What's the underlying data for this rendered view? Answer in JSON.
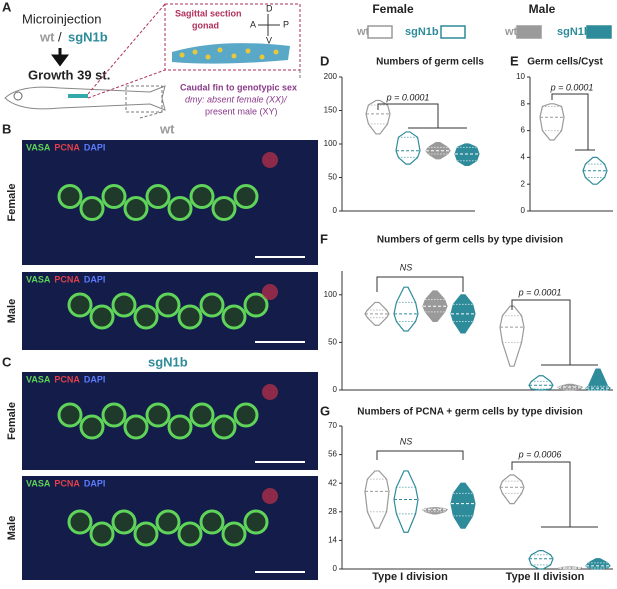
{
  "panel_a": {
    "label": "A",
    "microinjection": "Microinjection",
    "wt": "wt",
    "slash": "/",
    "sgN1b": "sgN1b",
    "growth": "Growth 39 st.",
    "section_title": "Sagittal section",
    "section_sub": "gonad",
    "axes": [
      "A",
      "D",
      "P",
      "V"
    ],
    "caudal": "Caudal fin to genotypic sex",
    "dmy_line1": "dmy: absent female (XX)/",
    "dmy_line2": "present male (XY)"
  },
  "panel_b": {
    "label": "B",
    "genotype": "wt",
    "stains": [
      "VASA",
      "PCNA",
      "DAPI"
    ],
    "rows": [
      "Female",
      "Male"
    ]
  },
  "panel_c": {
    "label": "C",
    "genotype": "sgN1b",
    "stains": [
      "VASA",
      "PCNA",
      "DAPI"
    ],
    "rows": [
      "Female",
      "Male"
    ]
  },
  "legend": [
    {
      "title": "Female",
      "entries": [
        {
          "label": "wt",
          "fill": "#ffffff",
          "stroke": "#9a9a9a"
        },
        {
          "label": "sgN1b",
          "fill": "#ffffff",
          "stroke": "#2e8b9a"
        }
      ]
    },
    {
      "title": "Male",
      "entries": [
        {
          "label": "wt",
          "fill": "#9a9a9a",
          "stroke": "#9a9a9a"
        },
        {
          "label": "sgN1b",
          "fill": "#2e8b9a",
          "stroke": "#2e8b9a"
        }
      ]
    }
  ],
  "chart_data": [
    {
      "type": "violin",
      "label": "D",
      "title": "Numbers of germ cells",
      "ylim": [
        0,
        200
      ],
      "yticks": [
        0,
        50,
        100,
        150,
        200
      ],
      "annotations": [
        "p = 0.0001"
      ],
      "series": [
        {
          "fill": "#ffffff",
          "color": "#9a9a9a",
          "values": [
            115,
            130,
            145,
            158,
            165
          ]
        },
        {
          "fill": "#ffffff",
          "color": "#2e8b9a",
          "values": [
            70,
            80,
            90,
            110,
            118
          ]
        },
        {
          "fill": "#9a9a9a",
          "color": "#9a9a9a",
          "values": [
            78,
            85,
            90,
            95,
            102
          ]
        },
        {
          "fill": "#2e8b9a",
          "color": "#2e8b9a",
          "values": [
            68,
            75,
            85,
            95,
            100
          ]
        }
      ]
    },
    {
      "type": "violin",
      "label": "E",
      "title": "Germ cells/Cyst",
      "ylim": [
        0,
        10
      ],
      "yticks": [
        0,
        2,
        4,
        6,
        8,
        10
      ],
      "annotations": [
        "p = 0.0001"
      ],
      "series": [
        {
          "fill": "#ffffff",
          "color": "#9a9a9a",
          "values": [
            5.3,
            6,
            7,
            7.8,
            8
          ]
        },
        {
          "fill": "#ffffff",
          "color": "#2e8b9a",
          "values": [
            2,
            2.5,
            3,
            3.5,
            4
          ]
        }
      ]
    },
    {
      "type": "violin",
      "label": "F",
      "title": "Numbers of germ cells by type division",
      "ylim": [
        0,
        125
      ],
      "yticks": [
        0,
        50,
        100
      ],
      "annotations": [
        "NS",
        "p = 0.0001"
      ],
      "series": [
        {
          "fill": "#ffffff",
          "color": "#9a9a9a",
          "values": [
            68,
            76,
            80,
            84,
            92
          ]
        },
        {
          "fill": "#ffffff",
          "color": "#2e8b9a",
          "values": [
            62,
            72,
            80,
            92,
            108
          ]
        },
        {
          "fill": "#9a9a9a",
          "color": "#9a9a9a",
          "values": [
            72,
            82,
            88,
            95,
            104
          ]
        },
        {
          "fill": "#2e8b9a",
          "color": "#2e8b9a",
          "values": [
            60,
            72,
            80,
            90,
            100
          ]
        },
        {
          "fill": "#ffffff",
          "color": "#9a9a9a",
          "values": [
            25,
            50,
            66,
            78,
            88
          ]
        },
        {
          "fill": "#ffffff",
          "color": "#2e8b9a",
          "values": [
            0,
            1,
            5,
            9,
            15
          ]
        },
        {
          "fill": "#9a9a9a",
          "color": "#9a9a9a",
          "values": [
            0,
            1,
            3,
            4,
            6
          ]
        },
        {
          "fill": "#2e8b9a",
          "color": "#2e8b9a",
          "values": [
            0,
            0,
            2,
            4,
            22
          ]
        }
      ]
    },
    {
      "type": "violin",
      "label": "G",
      "title": "Numbers of PCNA + germ cells by type division",
      "ylim": [
        0,
        70
      ],
      "yticks": [
        0,
        14,
        28,
        42,
        56,
        70
      ],
      "annotations": [
        "NS",
        "p = 0.0006"
      ],
      "categories": [
        "Type I division",
        "Type II division"
      ],
      "series": [
        {
          "fill": "#ffffff",
          "color": "#9a9a9a",
          "values": [
            20,
            28,
            38,
            44,
            48
          ]
        },
        {
          "fill": "#ffffff",
          "color": "#2e8b9a",
          "values": [
            18,
            27,
            34,
            40,
            48
          ]
        },
        {
          "fill": "#9a9a9a",
          "color": "#9a9a9a",
          "values": [
            27,
            28,
            29,
            29.5,
            30
          ]
        },
        {
          "fill": "#2e8b9a",
          "color": "#2e8b9a",
          "values": [
            20,
            26,
            32,
            37,
            42
          ]
        },
        {
          "fill": "#ffffff",
          "color": "#9a9a9a",
          "values": [
            32,
            37,
            40,
            43,
            46
          ]
        },
        {
          "fill": "#ffffff",
          "color": "#2e8b9a",
          "values": [
            0,
            2,
            5,
            7,
            9
          ]
        },
        {
          "fill": "#9a9a9a",
          "color": "#9a9a9a",
          "values": [
            0,
            0.3,
            0.5,
            0.7,
            1
          ]
        },
        {
          "fill": "#2e8b9a",
          "color": "#2e8b9a",
          "values": [
            0,
            0.5,
            1.5,
            3,
            5
          ]
        }
      ]
    }
  ]
}
